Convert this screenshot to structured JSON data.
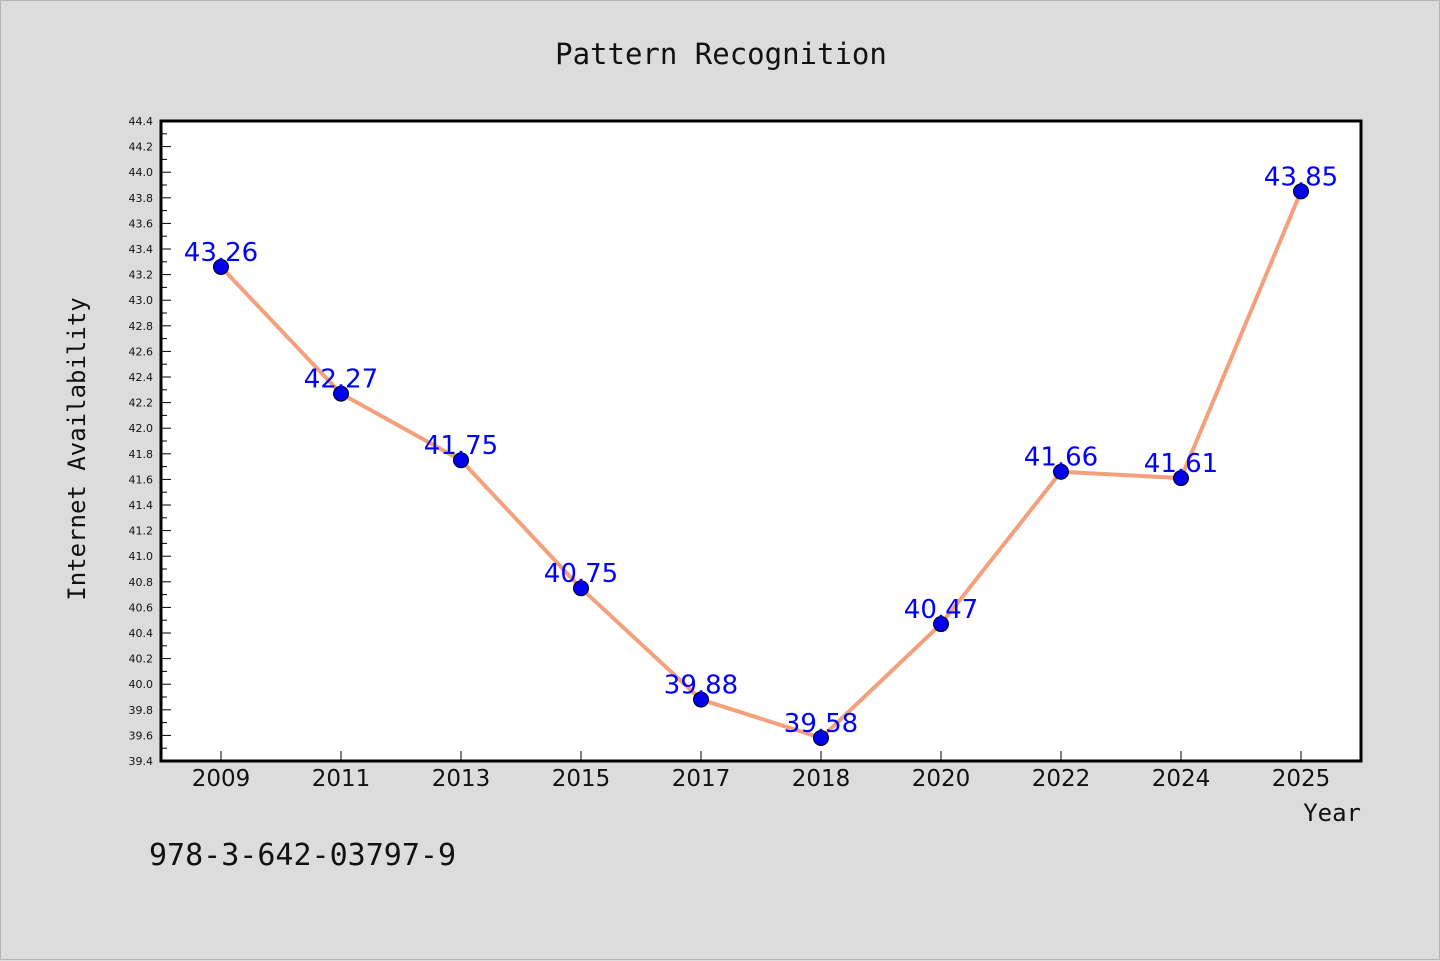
{
  "chart_data": {
    "type": "line",
    "title": "Pattern Recognition",
    "xlabel": "Year",
    "ylabel": "Internet Availability",
    "categories": [
      "2009",
      "2011",
      "2013",
      "2015",
      "2017",
      "2018",
      "2020",
      "2022",
      "2024",
      "2025"
    ],
    "series": [
      {
        "values": [
          43.26,
          42.27,
          41.75,
          40.75,
          39.88,
          39.58,
          40.47,
          41.66,
          41.61,
          43.85
        ],
        "line_color": "#f4a07c",
        "marker_color": "#0000ee",
        "label_color": "#0000ff"
      }
    ],
    "ylim": [
      39.4,
      44.4
    ],
    "yticks": [
      "39.4",
      "39.6",
      "39.8",
      "40.0",
      "40.2",
      "40.4",
      "40.6",
      "40.8",
      "41.0",
      "41.2",
      "41.4",
      "41.6",
      "41.8",
      "42.0",
      "42.2",
      "42.4",
      "42.6",
      "42.8",
      "43.0",
      "43.2",
      "43.4",
      "43.6",
      "43.8",
      "44.0",
      "44.2",
      "44.4"
    ],
    "data_labels": [
      "43.26",
      "42.27",
      "41.75",
      "40.75",
      "39.88",
      "39.58",
      "40.47",
      "41.66",
      "41.61",
      "43.85"
    ],
    "grid": false,
    "legend": "none"
  },
  "footer": {
    "isbn": "978-3-642-03797-9"
  },
  "colors": {
    "background": "#dcdcdc",
    "plot_area": "#ffffff",
    "axis": "#000000"
  }
}
